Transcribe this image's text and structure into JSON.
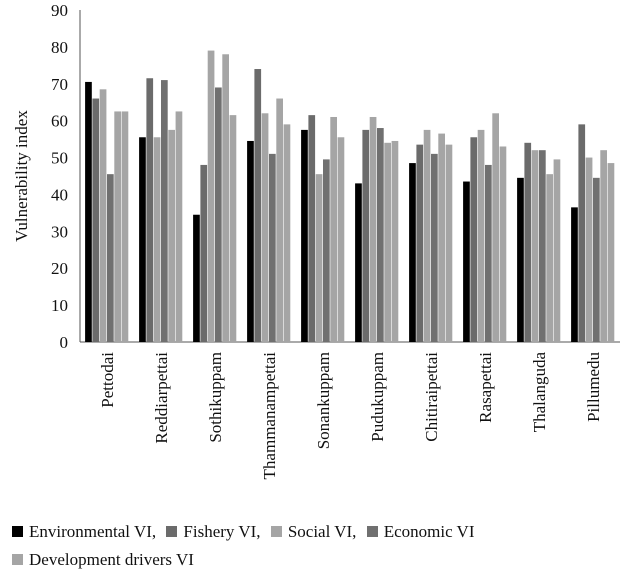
{
  "chart_data": {
    "type": "bar",
    "title": "",
    "xlabel": "",
    "ylabel": "Vulnerability index",
    "ylim": [
      0,
      90
    ],
    "yticks": [
      0,
      10,
      20,
      30,
      40,
      50,
      60,
      70,
      80,
      90
    ],
    "grid": false,
    "legend_position": "bottom",
    "categories": [
      "Pettodai",
      "Reddiarpettai",
      "Sothikuppam",
      "Thammanampettai",
      "Sonankuppam",
      "Pudukuppam",
      "Chitiraipettai",
      "Rasapettai",
      "Thalanguda",
      "Pillumedu"
    ],
    "series": [
      {
        "name": "Environmental VI",
        "color": "#000000",
        "values": [
          70.5,
          55.5,
          34.5,
          54.5,
          57.5,
          43,
          48.5,
          43.5,
          44.5,
          36.5
        ]
      },
      {
        "name": "Fishery VI",
        "color": "#6b6b6b",
        "values": [
          66,
          71.5,
          48,
          74,
          61.5,
          57.5,
          53.5,
          55.5,
          54,
          59
        ]
      },
      {
        "name": "Social VI",
        "color": "#a5a5a5",
        "values": [
          68.5,
          55.5,
          79,
          62,
          45.5,
          61,
          57.5,
          57.5,
          52,
          50
        ]
      },
      {
        "name": "Economic VI",
        "color": "#707070",
        "values": [
          45.5,
          71,
          69,
          51,
          49.5,
          58,
          51,
          48,
          52,
          44.5
        ]
      },
      {
        "name": "Development drivers VI",
        "color": "#a5a5a5",
        "values": [
          62.5,
          57.5,
          78,
          66,
          61,
          54,
          56.5,
          62,
          45.5,
          52
        ]
      }
    ],
    "extra_values": [
      62.5,
      62.5,
      61.5,
      59,
      55.5,
      54.5,
      53.5,
      53,
      49.5,
      48.5
    ],
    "extra_color": "#a5a5a5",
    "legend_entries": [
      "Environmental VI,",
      "Fishery VI,",
      "Social VI,",
      "Economic VI",
      "Development drivers VI"
    ]
  }
}
